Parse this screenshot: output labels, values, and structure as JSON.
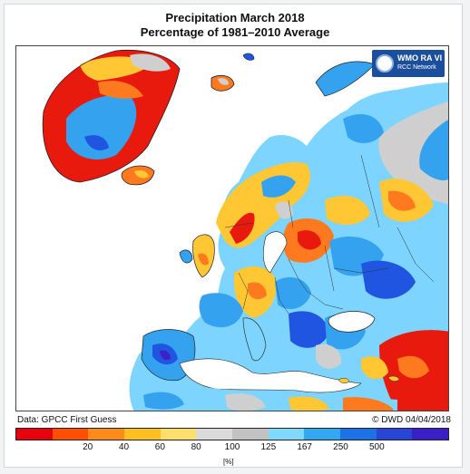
{
  "title": "Precipitation March 2018",
  "subtitle": "Percentage of 1981–2010 Average",
  "logo": {
    "line1": "WMO RA VI",
    "line2": "RCC Network",
    "icon": "wmo-globe-icon"
  },
  "data_source": "Data: GPCC First Guess",
  "credit": "© DWD 04/04/2018",
  "legend": {
    "unit": "[%]",
    "ticks": [
      "20",
      "40",
      "60",
      "80",
      "100",
      "125",
      "167",
      "250",
      "500"
    ],
    "colors": [
      "#e8000d",
      "#ff4e00",
      "#ff8c1a",
      "#ffc01f",
      "#ffdf6b",
      "#dadada",
      "#c2c2c2",
      "#7fd9ff",
      "#32a8f2",
      "#1b71e6",
      "#2845d6",
      "#3a1fc8"
    ]
  },
  "map_colors": {
    "sea": "#ffffff",
    "coast": "#222222",
    "deficit_strong": "#e81a0d",
    "deficit": "#ff7a1f",
    "deficit_light": "#ffc733",
    "normal": "#cfcfcf",
    "wet_light": "#7cd4ff",
    "wet": "#35a2f0",
    "wet_strong": "#1f55e0",
    "wet_extreme": "#3d22c9"
  }
}
